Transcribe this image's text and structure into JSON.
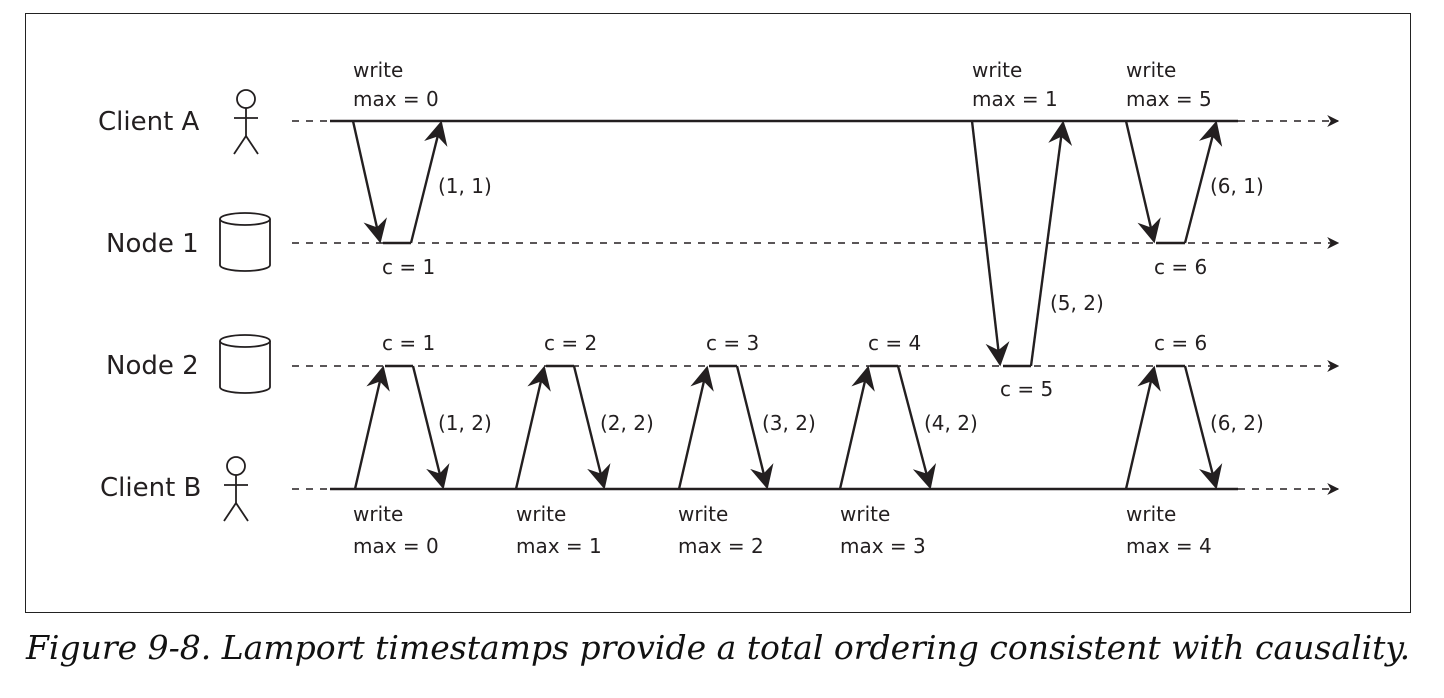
{
  "lanes": {
    "client_a": "Client A",
    "node_1": "Node 1",
    "node_2": "Node 2",
    "client_b": "Client B"
  },
  "client_a_requests": [
    {
      "op": "write",
      "max": "max = 0",
      "request_ts": "",
      "response_ts": "(1, 1)",
      "node_counter": "c = 1"
    },
    {
      "op": "write",
      "max": "max = 1",
      "response_ts": "(5, 2)",
      "node_counter": "c = 5"
    },
    {
      "op": "write",
      "max": "max = 5",
      "response_ts": "(6, 1)",
      "node_counter": "c = 6"
    }
  ],
  "client_b_requests": [
    {
      "op": "write",
      "max": "max = 0",
      "response_ts": "(1, 2)",
      "node_counter": "c = 1"
    },
    {
      "op": "write",
      "max": "max = 1",
      "response_ts": "(2, 2)",
      "node_counter": "c = 2"
    },
    {
      "op": "write",
      "max": "max = 2",
      "response_ts": "(3, 2)",
      "node_counter": "c = 3"
    },
    {
      "op": "write",
      "max": "max = 3",
      "response_ts": "(4, 2)",
      "node_counter": "c = 4"
    },
    {
      "op": "write",
      "max": "max = 4",
      "response_ts": "(6, 2)",
      "node_counter": "c = 6"
    }
  ],
  "caption": "Figure 9-8. Lamport timestamps provide a total ordering consistent with causality."
}
